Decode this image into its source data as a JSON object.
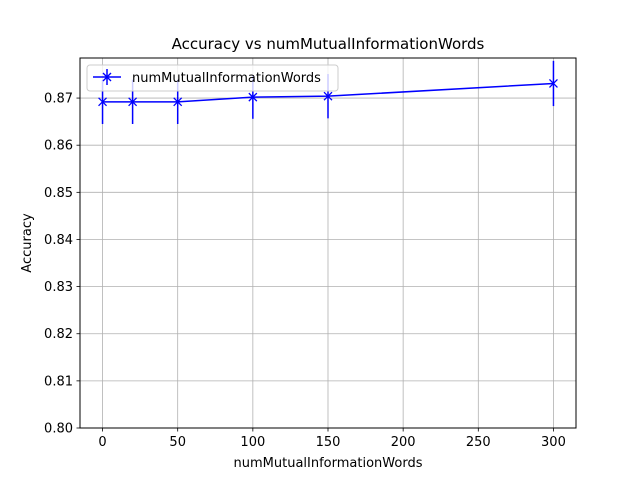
{
  "chart_data": {
    "type": "line",
    "title": "Accuracy vs numMutualInformationWords",
    "xlabel": "numMutualInformationWords",
    "ylabel": "Accuracy",
    "xlim": [
      -15,
      315
    ],
    "ylim": [
      0.8,
      0.8785
    ],
    "xticks": [
      0,
      50,
      100,
      150,
      200,
      250,
      300
    ],
    "yticks": [
      0.8,
      0.81,
      0.82,
      0.83,
      0.84,
      0.85,
      0.86,
      0.87
    ],
    "grid": true,
    "legend_position": "upper-left",
    "series": [
      {
        "name": "numMutualInformationWords",
        "color": "#0000ff",
        "marker": "x",
        "x": [
          0,
          20,
          50,
          100,
          150,
          300
        ],
        "y": [
          0.8692,
          0.8692,
          0.8692,
          0.8702,
          0.8704,
          0.8731
        ],
        "yerr": [
          0.0047,
          0.0047,
          0.0047,
          0.0046,
          0.0047,
          0.0048
        ]
      }
    ]
  }
}
